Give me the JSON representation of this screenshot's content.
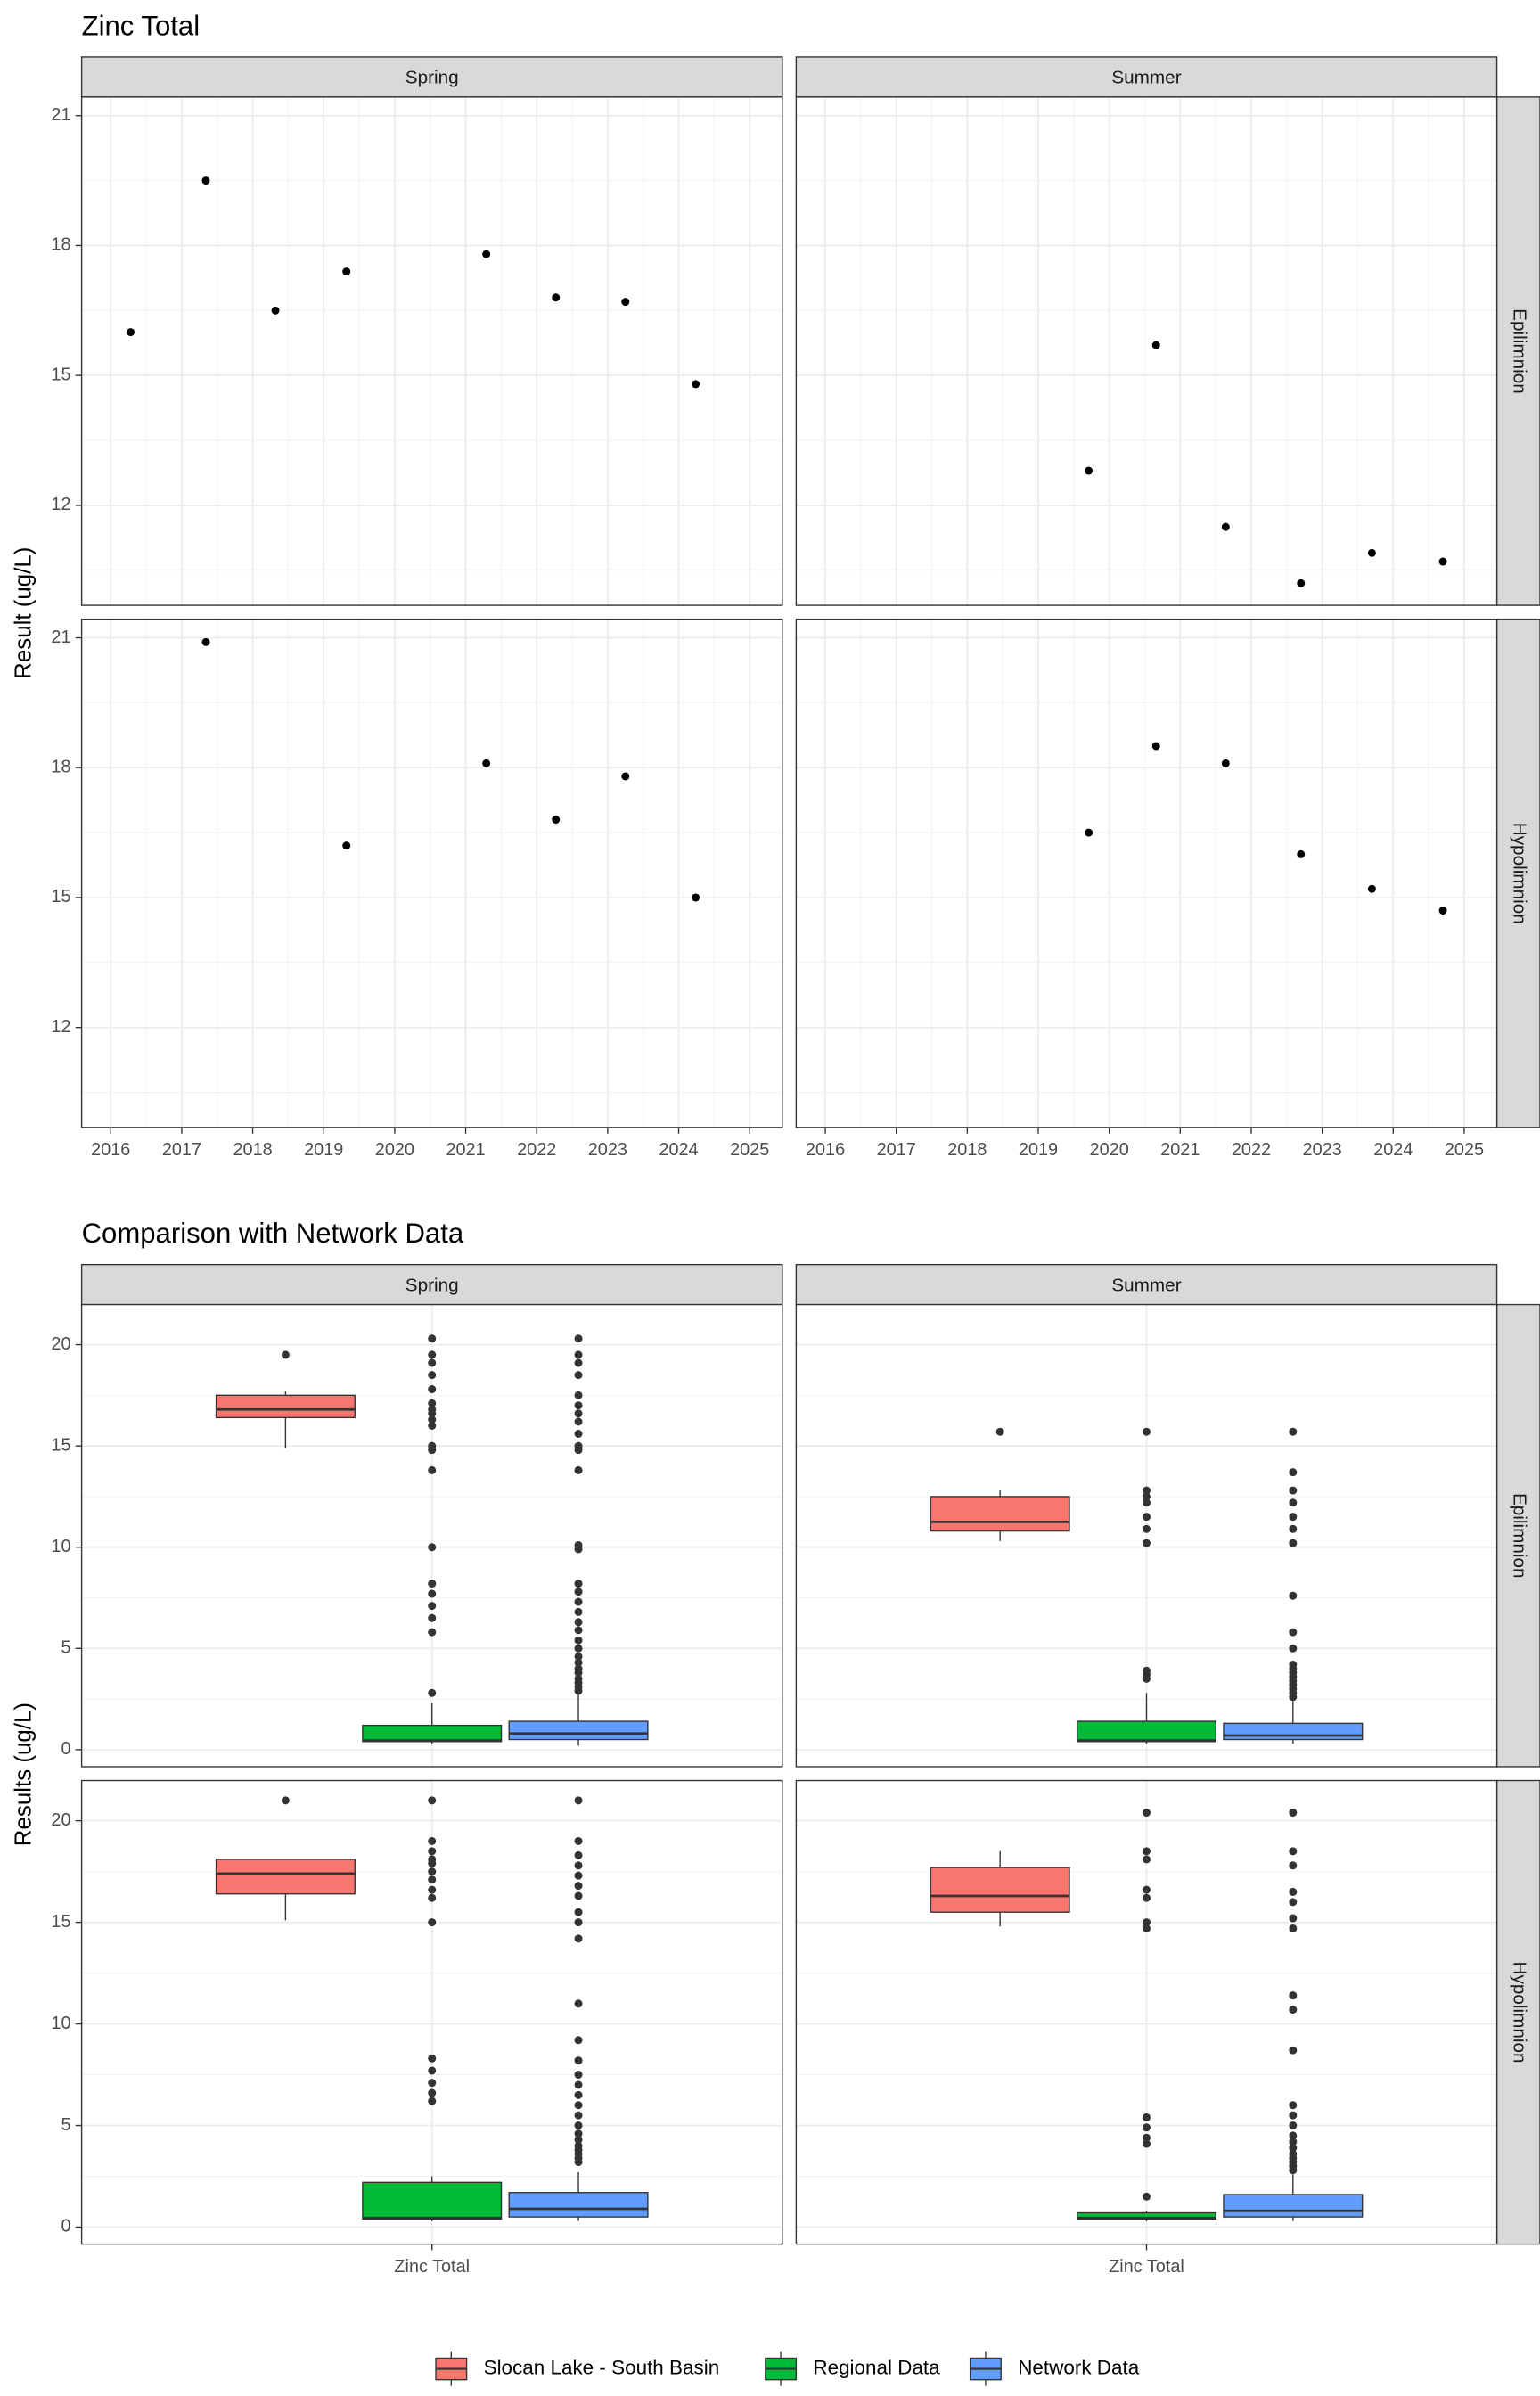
{
  "chart_data": [
    {
      "type": "scatter",
      "title": "Zinc Total",
      "y_label": "Result (ug/L)",
      "columns": [
        "Spring",
        "Summer"
      ],
      "rows": [
        "Epilimnion",
        "Hypolimnion"
      ],
      "color": "#000000",
      "grid": true,
      "xlim": [
        2015.59,
        2025.46
      ],
      "xticks": [
        2016,
        2017,
        2018,
        2019,
        2020,
        2021,
        2022,
        2023,
        2024,
        2025
      ],
      "ylim": [
        9.69,
        21.43
      ],
      "yticks": [
        12,
        15,
        18,
        21
      ],
      "panels": [
        [
          {
            "x": [
              2016.28,
              2017.34,
              2018.32,
              2019.32,
              2021.29,
              2022.27,
              2023.25,
              2024.24
            ],
            "values": [
              16.0,
              19.5,
              16.5,
              17.4,
              17.8,
              16.8,
              16.7,
              14.8
            ]
          },
          {
            "x": [
              2019.71,
              2020.66,
              2021.64,
              2022.7,
              2023.7,
              2024.7
            ],
            "values": [
              12.8,
              15.7,
              11.5,
              10.2,
              10.9,
              10.7
            ]
          }
        ],
        [
          {
            "x": [
              2017.34,
              2019.32,
              2021.29,
              2022.27,
              2023.25,
              2024.24
            ],
            "values": [
              20.9,
              16.2,
              18.1,
              16.8,
              17.8,
              15.0
            ]
          },
          {
            "x": [
              2019.71,
              2020.66,
              2021.64,
              2022.7,
              2023.7,
              2024.7
            ],
            "values": [
              16.5,
              18.5,
              18.1,
              16.0,
              15.2,
              14.7
            ]
          }
        ]
      ]
    },
    {
      "type": "box",
      "title": "Comparison with Network Data",
      "y_label": "Results (ug/L)",
      "columns": [
        "Spring",
        "Summer"
      ],
      "rows": [
        "Epilimnion",
        "Hypolimnion"
      ],
      "categories": [
        "Zinc Total"
      ],
      "grid": true,
      "ylim": [
        -0.84,
        21.98
      ],
      "yticks": [
        0,
        5,
        10,
        15,
        20
      ],
      "series": [
        {
          "name": "Slocan Lake - South Basin",
          "color": "#F8766D"
        },
        {
          "name": "Regional Data",
          "color": "#00BA38"
        },
        {
          "name": "Network Data",
          "color": "#619CFF"
        }
      ],
      "panels": [
        [
          [
            {
              "whislo": 14.9,
              "q1": 16.4,
              "med": 16.8,
              "q3": 17.5,
              "whishi": 17.7,
              "outliers": [
                19.5
              ]
            },
            {
              "whislo": 0.3,
              "q1": 0.4,
              "med": 0.45,
              "q3": 1.2,
              "whishi": 2.3,
              "outliers": [
                2.8,
                5.8,
                6.5,
                7.1,
                7.7,
                8.2,
                10.0,
                13.8,
                14.8,
                15.0,
                16.0,
                16.3,
                16.6,
                16.8,
                17.1,
                17.8,
                18.5,
                19.1,
                19.5,
                20.3
              ]
            },
            {
              "whislo": 0.2,
              "q1": 0.5,
              "med": 0.8,
              "q3": 1.4,
              "whishi": 2.7,
              "outliers": [
                2.9,
                3.1,
                3.3,
                3.5,
                3.8,
                4.0,
                4.3,
                4.6,
                5.0,
                5.4,
                5.9,
                6.3,
                6.8,
                7.3,
                7.8,
                8.2,
                9.9,
                10.1,
                13.8,
                14.8,
                15.0,
                15.6,
                16.2,
                16.6,
                17.0,
                17.5,
                18.5,
                19.1,
                19.5,
                20.3
              ]
            }
          ],
          [
            {
              "whislo": 10.3,
              "q1": 10.8,
              "med": 11.25,
              "q3": 12.5,
              "whishi": 12.8,
              "outliers": [
                15.7
              ]
            },
            {
              "whislo": 0.3,
              "q1": 0.4,
              "med": 0.45,
              "q3": 1.4,
              "whishi": 2.8,
              "outliers": [
                3.5,
                3.7,
                3.9,
                10.2,
                10.9,
                11.5,
                12.2,
                12.5,
                12.8,
                15.7
              ]
            },
            {
              "whislo": 0.3,
              "q1": 0.5,
              "med": 0.7,
              "q3": 1.3,
              "whishi": 2.4,
              "outliers": [
                2.6,
                2.8,
                3.0,
                3.2,
                3.4,
                3.6,
                3.8,
                4.0,
                4.2,
                5.0,
                5.8,
                7.6,
                10.2,
                10.9,
                11.5,
                12.2,
                12.8,
                13.7,
                15.7
              ]
            }
          ]
        ],
        [
          [
            {
              "whislo": 15.1,
              "q1": 16.4,
              "med": 17.4,
              "q3": 18.1,
              "whishi": 18.1,
              "outliers": [
                21.0
              ]
            },
            {
              "whislo": 0.3,
              "q1": 0.4,
              "med": 0.45,
              "q3": 2.2,
              "whishi": 2.5,
              "outliers": [
                6.2,
                6.6,
                7.1,
                7.7,
                8.3,
                15.0,
                16.2,
                16.6,
                17.1,
                17.5,
                17.9,
                18.1,
                18.5,
                19.0,
                21.0
              ]
            },
            {
              "whislo": 0.3,
              "q1": 0.5,
              "med": 0.9,
              "q3": 1.7,
              "whishi": 2.7,
              "outliers": [
                3.2,
                3.4,
                3.6,
                3.8,
                4.0,
                4.3,
                4.6,
                5.0,
                5.5,
                6.0,
                6.5,
                7.0,
                7.5,
                8.2,
                9.2,
                11.0,
                14.2,
                15.0,
                15.5,
                16.3,
                16.8,
                17.3,
                17.8,
                18.3,
                19.0,
                21.0
              ]
            }
          ],
          [
            {
              "whislo": 14.8,
              "q1": 15.5,
              "med": 16.3,
              "q3": 17.7,
              "whishi": 18.5,
              "outliers": []
            },
            {
              "whislo": 0.3,
              "q1": 0.4,
              "med": 0.45,
              "q3": 0.7,
              "whishi": 0.8,
              "outliers": [
                1.5,
                4.1,
                4.4,
                4.9,
                5.4,
                14.7,
                15.0,
                16.2,
                16.6,
                18.1,
                18.5,
                20.4
              ]
            },
            {
              "whislo": 0.3,
              "q1": 0.5,
              "med": 0.8,
              "q3": 1.6,
              "whishi": 2.6,
              "outliers": [
                2.8,
                3.0,
                3.2,
                3.4,
                3.6,
                3.9,
                4.2,
                4.5,
                5.0,
                5.5,
                6.0,
                8.7,
                10.7,
                11.4,
                14.7,
                15.2,
                16.0,
                16.5,
                17.8,
                18.5,
                20.4
              ]
            }
          ]
        ]
      ]
    }
  ]
}
